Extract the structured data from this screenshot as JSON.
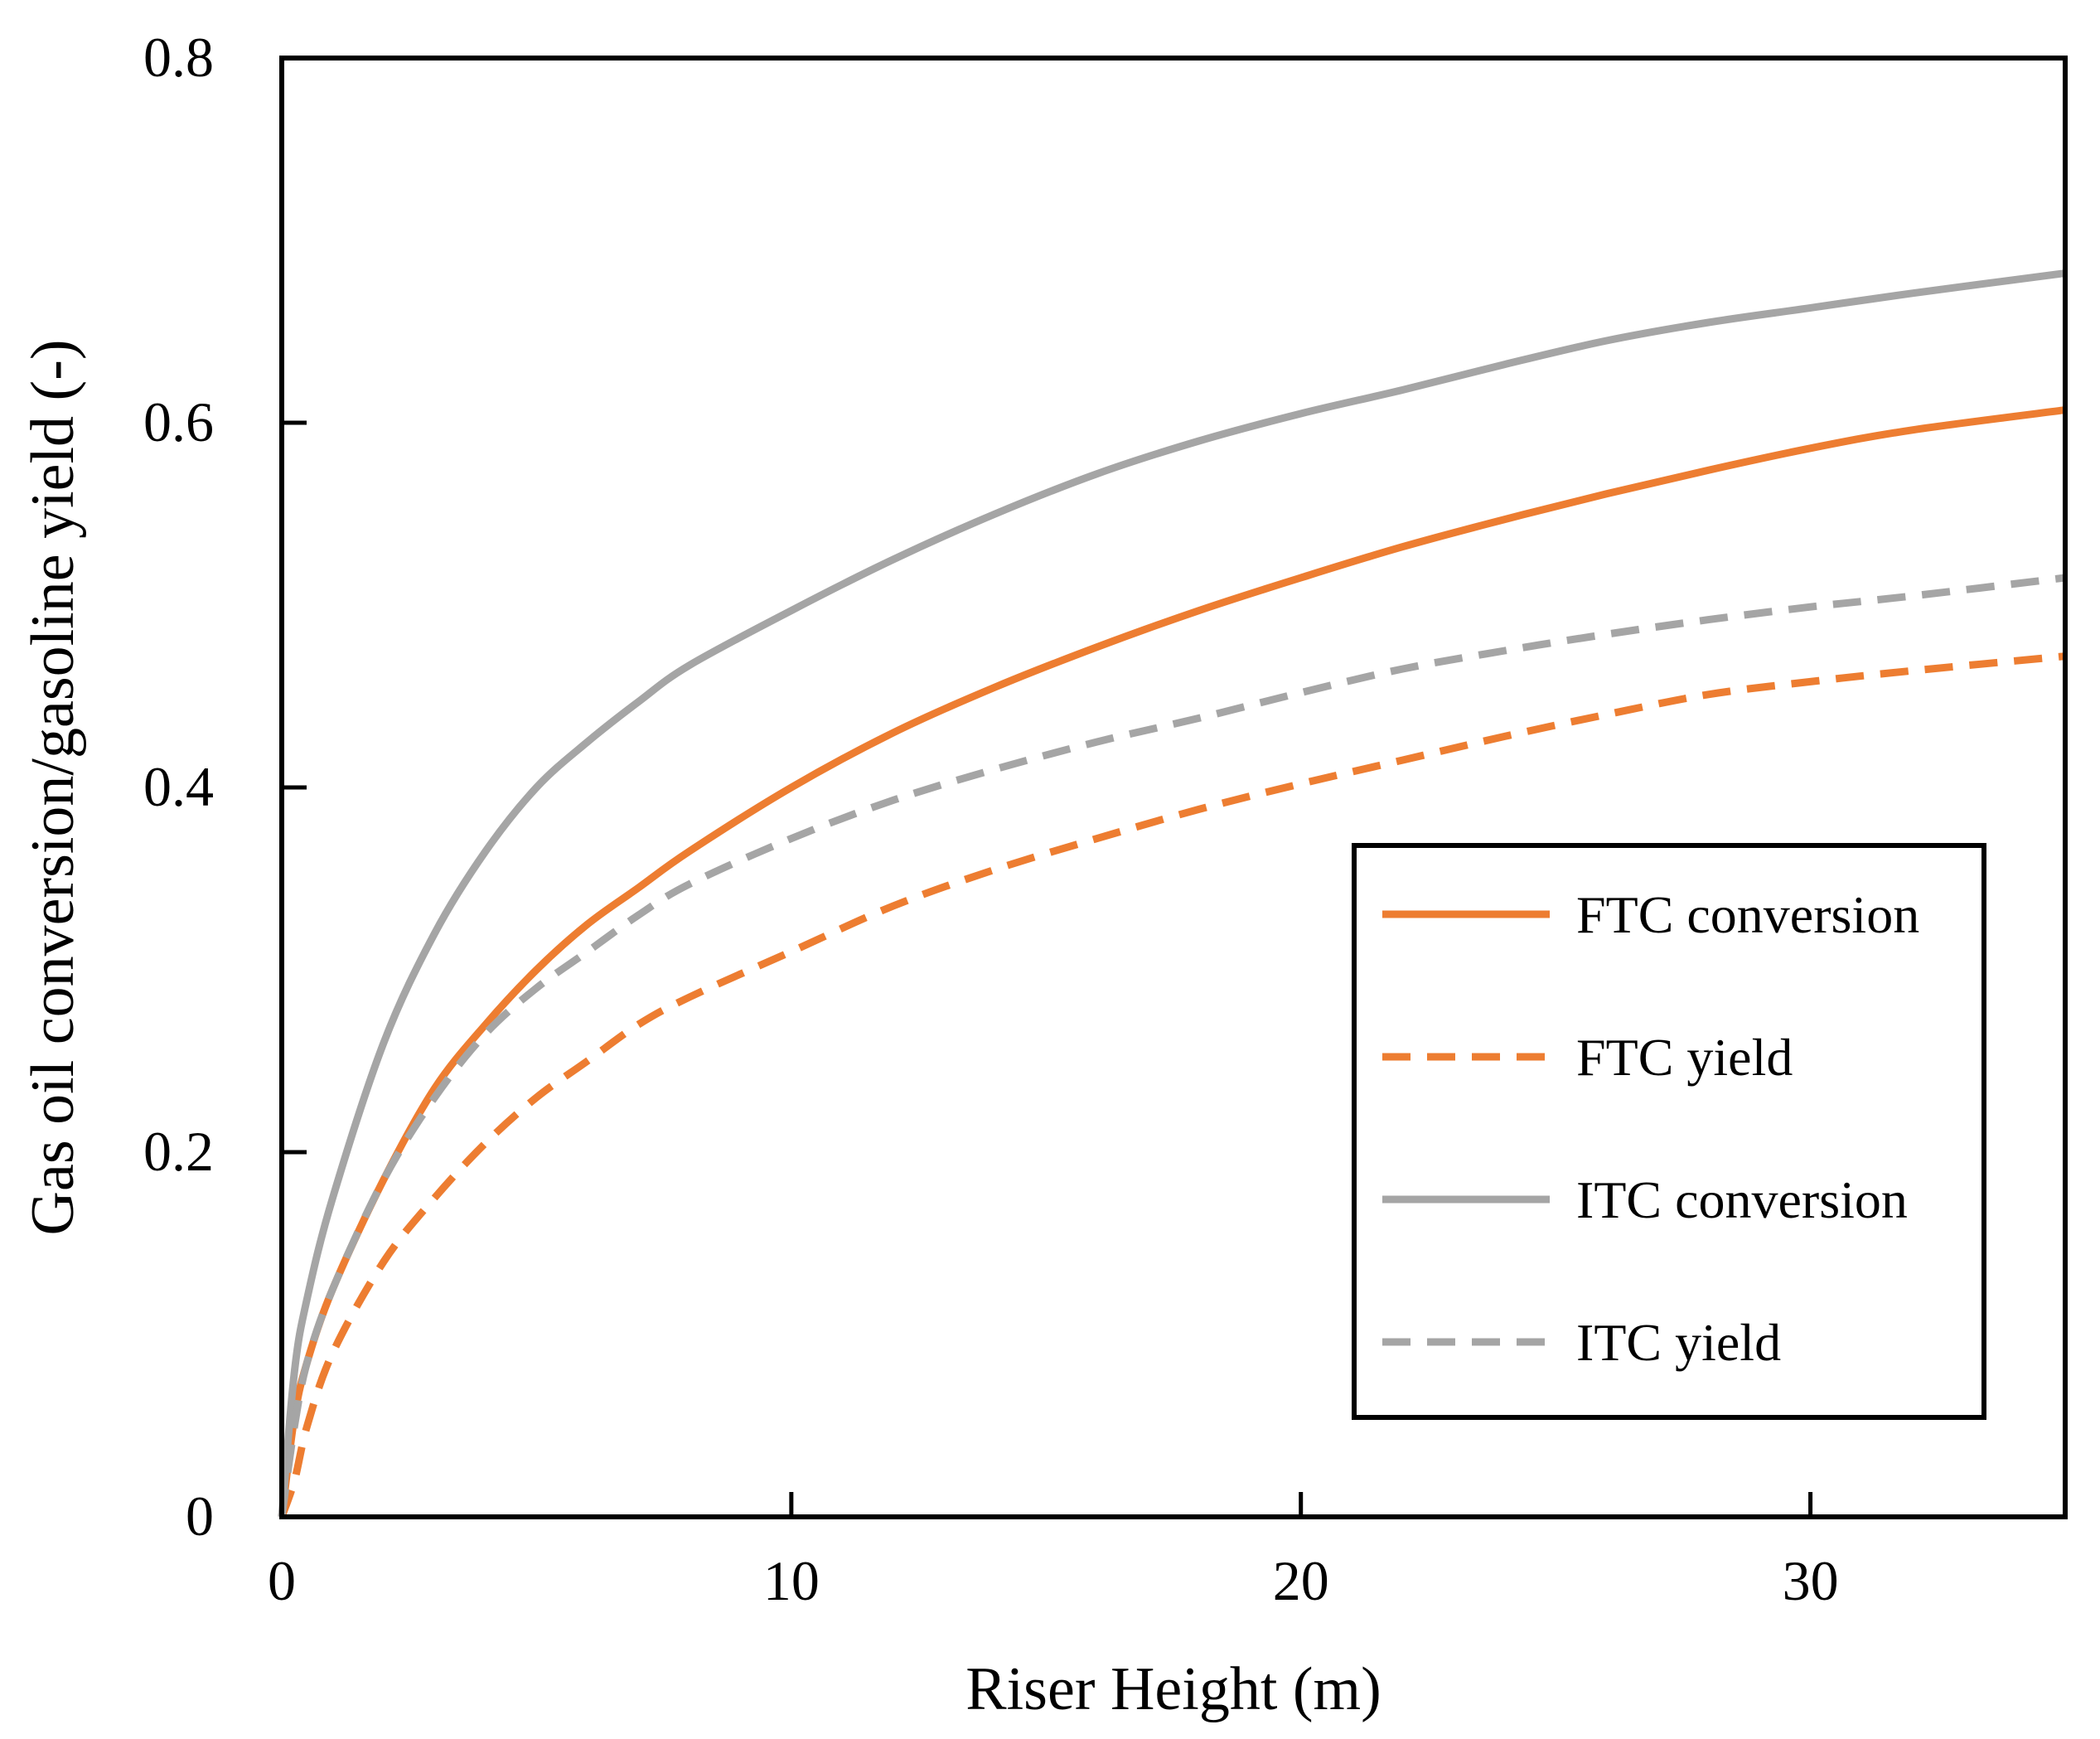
{
  "chart_data": {
    "type": "line",
    "title": "",
    "xlabel": "Riser Height (m)",
    "ylabel": "Gas oil conversion/gasoline yield (-)",
    "xlim": [
      0,
      35
    ],
    "ylim": [
      0,
      0.8
    ],
    "x_ticks": [
      "0",
      "10",
      "20",
      "30"
    ],
    "y_ticks": [
      "0",
      "0.2",
      "0.4",
      "0.6",
      "0.8"
    ],
    "grid": false,
    "legend_position": "right",
    "x": [
      0,
      0.25,
      0.5,
      1,
      2,
      3,
      4,
      5,
      6,
      7,
      8,
      10,
      12,
      14,
      16,
      18,
      20,
      22,
      24,
      26,
      28,
      30,
      32,
      35
    ],
    "series": [
      {
        "name": "FTC conversion",
        "color": "#ED7D31",
        "dash": "solid",
        "values": [
          0,
          0.055,
          0.085,
          0.125,
          0.185,
          0.235,
          0.27,
          0.3,
          0.325,
          0.345,
          0.365,
          0.4,
          0.43,
          0.455,
          0.477,
          0.497,
          0.515,
          0.532,
          0.547,
          0.561,
          0.574,
          0.586,
          0.596,
          0.607
        ]
      },
      {
        "name": "FTC yield",
        "color": "#ED7D31",
        "dash": "dashed",
        "values": [
          0,
          0.02,
          0.05,
          0.09,
          0.14,
          0.175,
          0.205,
          0.23,
          0.25,
          0.27,
          0.285,
          0.31,
          0.335,
          0.355,
          0.372,
          0.388,
          0.402,
          0.415,
          0.428,
          0.44,
          0.451,
          0.458,
          0.464,
          0.472
        ]
      },
      {
        "name": "ITC conversion",
        "color": "#A5A5A5",
        "dash": "solid",
        "values": [
          0,
          0.08,
          0.12,
          0.175,
          0.26,
          0.32,
          0.365,
          0.4,
          0.425,
          0.447,
          0.467,
          0.497,
          0.525,
          0.55,
          0.572,
          0.59,
          0.605,
          0.618,
          0.632,
          0.645,
          0.655,
          0.663,
          0.671,
          0.682
        ]
      },
      {
        "name": "ITC yield",
        "color": "#A5A5A5",
        "dash": "dashed",
        "values": [
          0,
          0.05,
          0.085,
          0.125,
          0.185,
          0.23,
          0.265,
          0.29,
          0.31,
          0.33,
          0.347,
          0.372,
          0.393,
          0.41,
          0.425,
          0.438,
          0.452,
          0.465,
          0.475,
          0.484,
          0.492,
          0.499,
          0.505,
          0.515
        ]
      }
    ]
  }
}
